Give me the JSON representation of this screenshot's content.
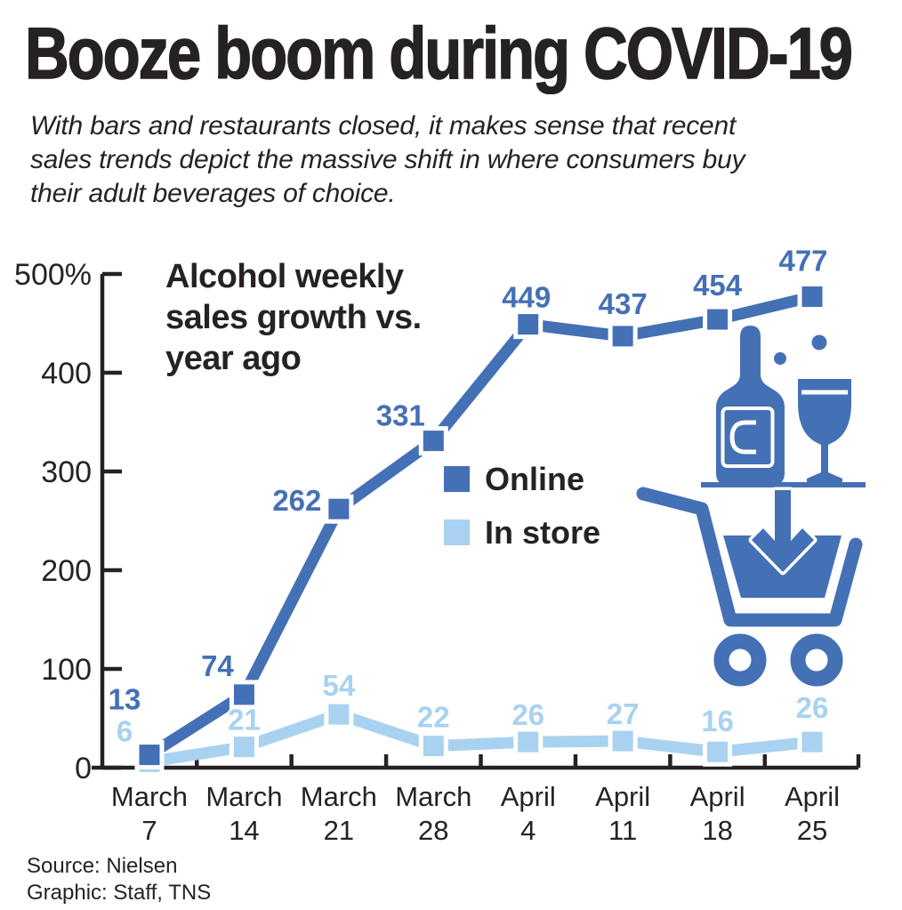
{
  "page": {
    "title": "Booze boom during COVID-19",
    "subtitle_lines": [
      "With bars and restaurants closed, it makes sense that recent",
      "sales trends depict the massive shift in where consumers buy",
      "their adult beverages of choice."
    ],
    "source": "Source: Nielsen",
    "credit": "Graphic: Staff, TNS"
  },
  "colors": {
    "online": "#4470b6",
    "in_store": "#a8d2f0",
    "ink": "#262223",
    "background": "#ffffff"
  },
  "chart_data": {
    "type": "line",
    "title": "Alcohol weekly sales growth vs. year ago",
    "title_lines": [
      "Alcohol weekly",
      "sales growth vs.",
      "year ago"
    ],
    "categories": [
      "March 7",
      "March 14",
      "March 21",
      "March 28",
      "April 4",
      "April 11",
      "April 18",
      "April 25"
    ],
    "categories_lines": [
      [
        "March",
        "7"
      ],
      [
        "March",
        "14"
      ],
      [
        "March",
        "21"
      ],
      [
        "March",
        "28"
      ],
      [
        "April",
        "4"
      ],
      [
        "April",
        "11"
      ],
      [
        "April",
        "18"
      ],
      [
        "April",
        "25"
      ]
    ],
    "series": [
      {
        "name": "Online",
        "color_key": "online",
        "values": [
          13,
          74,
          262,
          331,
          449,
          437,
          454,
          477
        ]
      },
      {
        "name": "In store",
        "color_key": "in_store",
        "values": [
          6,
          21,
          54,
          22,
          26,
          27,
          16,
          26
        ]
      }
    ],
    "legend": [
      {
        "label": "Online",
        "key": "online"
      },
      {
        "label": "In store",
        "key": "in_store"
      }
    ],
    "legend_position": "middle-right",
    "xlabel": "",
    "ylabel": "",
    "ylim": [
      0,
      500
    ],
    "yticks": [
      0,
      100,
      200,
      300,
      400,
      500
    ],
    "ytick_labels": [
      "0",
      "100",
      "200",
      "300",
      "400",
      "500%"
    ],
    "grid": false,
    "value_labels_shown": true
  }
}
